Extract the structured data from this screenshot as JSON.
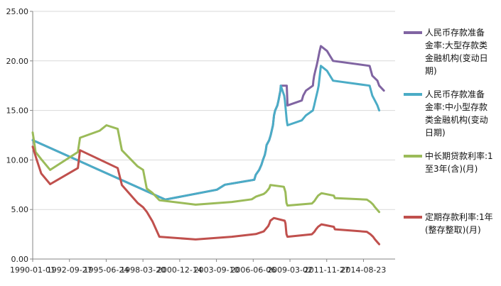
{
  "chart_data": {
    "type": "line",
    "title": "",
    "xlabel": "",
    "ylabel": "",
    "ylim": [
      0,
      25
    ],
    "y_ticks": [
      "0.00",
      "5.00",
      "10.00",
      "15.00",
      "20.00",
      "25.00"
    ],
    "x_range": [
      "1990-01-01",
      "2016-12-31"
    ],
    "x_ticks": [
      "1990-01-01",
      "1992-09-27",
      "1995-06-24",
      "1998-03-20",
      "2000-12-14",
      "2003-09-10",
      "2006-06-06",
      "2009-03-02",
      "2011-11-27",
      "2014-08-23"
    ],
    "grid": "horizontal",
    "legend_position": "right",
    "series": [
      {
        "name": "人民币存款准备金率:大型存款类金融机构(变动日期)",
        "legend_lines": [
          "人民币存款准备",
          "金率:大型存款类",
          "金融机构(变动日",
          "期)"
        ],
        "color": "#8064a2",
        "points": [
          [
            "1990-01-01",
            12.0
          ],
          [
            "1999-11-18",
            6.0
          ],
          [
            "2003-09-21",
            7.0
          ],
          [
            "2004-04-25",
            7.5
          ],
          [
            "2006-07-05",
            8.0
          ],
          [
            "2006-08-15",
            8.5
          ],
          [
            "2006-11-15",
            9.0
          ],
          [
            "2007-01-15",
            9.5
          ],
          [
            "2007-02-25",
            10.0
          ],
          [
            "2007-04-16",
            10.5
          ],
          [
            "2007-05-15",
            11.0
          ],
          [
            "2007-06-05",
            11.5
          ],
          [
            "2007-08-15",
            12.0
          ],
          [
            "2007-09-25",
            12.5
          ],
          [
            "2007-10-25",
            13.0
          ],
          [
            "2007-11-26",
            13.5
          ],
          [
            "2007-12-25",
            14.5
          ],
          [
            "2008-01-25",
            15.0
          ],
          [
            "2008-03-25",
            15.5
          ],
          [
            "2008-04-25",
            16.0
          ],
          [
            "2008-05-20",
            16.5
          ],
          [
            "2008-06-15",
            17.0
          ],
          [
            "2008-06-25",
            17.5
          ],
          [
            "2008-12-05",
            17.5
          ],
          [
            "2008-12-25",
            15.5
          ],
          [
            "2010-01-18",
            16.0
          ],
          [
            "2010-02-25",
            16.5
          ],
          [
            "2010-05-10",
            17.0
          ],
          [
            "2010-11-16",
            17.5
          ],
          [
            "2010-11-29",
            18.0
          ],
          [
            "2010-12-20",
            18.5
          ],
          [
            "2011-01-20",
            19.0
          ],
          [
            "2011-02-24",
            19.5
          ],
          [
            "2011-03-25",
            20.0
          ],
          [
            "2011-04-21",
            20.5
          ],
          [
            "2011-05-18",
            21.0
          ],
          [
            "2011-06-20",
            21.5
          ],
          [
            "2011-12-05",
            21.0
          ],
          [
            "2012-02-24",
            20.5
          ],
          [
            "2012-05-18",
            20.0
          ],
          [
            "2015-02-05",
            19.5
          ],
          [
            "2015-04-20",
            18.5
          ],
          [
            "2015-09-06",
            18.0
          ],
          [
            "2015-10-24",
            17.5
          ],
          [
            "2016-03-01",
            17.0
          ]
        ]
      },
      {
        "name": "人民币存款准备金率:中小型存款类金融机构(变动日期)",
        "legend_lines": [
          "人民币存款准备",
          "金率:中小型存款",
          "类金融机构(变动",
          "日期)"
        ],
        "color": "#4bacc6",
        "points": [
          [
            "1990-01-01",
            12.0
          ],
          [
            "1999-11-18",
            6.0
          ],
          [
            "2003-09-21",
            7.0
          ],
          [
            "2004-04-25",
            7.5
          ],
          [
            "2006-07-05",
            8.0
          ],
          [
            "2006-08-15",
            8.5
          ],
          [
            "2006-11-15",
            9.0
          ],
          [
            "2007-01-15",
            9.5
          ],
          [
            "2007-02-25",
            10.0
          ],
          [
            "2007-04-16",
            10.5
          ],
          [
            "2007-05-15",
            11.0
          ],
          [
            "2007-06-05",
            11.5
          ],
          [
            "2007-08-15",
            12.0
          ],
          [
            "2007-09-25",
            12.5
          ],
          [
            "2007-10-25",
            13.0
          ],
          [
            "2007-11-26",
            13.5
          ],
          [
            "2007-12-25",
            14.5
          ],
          [
            "2008-01-25",
            15.0
          ],
          [
            "2008-03-25",
            15.5
          ],
          [
            "2008-04-25",
            16.0
          ],
          [
            "2008-05-20",
            16.5
          ],
          [
            "2008-06-15",
            17.0
          ],
          [
            "2008-06-25",
            17.5
          ],
          [
            "2008-09-25",
            16.5
          ],
          [
            "2008-10-15",
            16.0
          ],
          [
            "2008-12-05",
            14.0
          ],
          [
            "2008-12-25",
            13.5
          ],
          [
            "2010-01-18",
            14.0
          ],
          [
            "2010-05-10",
            14.5
          ],
          [
            "2010-11-16",
            15.0
          ],
          [
            "2010-12-20",
            15.5
          ],
          [
            "2011-01-20",
            16.0
          ],
          [
            "2011-03-25",
            17.0
          ],
          [
            "2011-04-21",
            17.5
          ],
          [
            "2011-06-20",
            19.5
          ],
          [
            "2011-12-05",
            19.0
          ],
          [
            "2012-02-24",
            18.5
          ],
          [
            "2012-05-18",
            18.0
          ],
          [
            "2015-02-05",
            17.5
          ],
          [
            "2015-04-20",
            16.5
          ],
          [
            "2015-06-28",
            16.0
          ],
          [
            "2015-09-06",
            15.5
          ],
          [
            "2015-10-24",
            15.0
          ]
        ]
      },
      {
        "name": "中长期贷款利率:1至3年(含)(月)",
        "legend_lines": [
          "中长期贷款利率:1",
          "至3年(含)(月)"
        ],
        "color": "#9bbb59",
        "points": [
          [
            "1990-01-01",
            12.78
          ],
          [
            "1990-03-21",
            10.8
          ],
          [
            "1990-08-21",
            10.08
          ],
          [
            "1991-04-21",
            9.0
          ],
          [
            "1993-05-15",
            10.8
          ],
          [
            "1993-07-11",
            12.24
          ],
          [
            "1995-01-01",
            12.96
          ],
          [
            "1995-07-01",
            13.5
          ],
          [
            "1996-05-01",
            13.14
          ],
          [
            "1996-08-23",
            10.98
          ],
          [
            "1997-10-23",
            9.36
          ],
          [
            "1998-03-25",
            9.0
          ],
          [
            "1998-07-01",
            7.11
          ],
          [
            "1998-12-07",
            6.66
          ],
          [
            "1999-06-10",
            5.94
          ],
          [
            "2002-02-21",
            5.49
          ],
          [
            "2004-10-29",
            5.76
          ],
          [
            "2006-04-28",
            6.03
          ],
          [
            "2006-08-19",
            6.3
          ],
          [
            "2007-03-18",
            6.57
          ],
          [
            "2007-05-19",
            6.75
          ],
          [
            "2007-07-21",
            7.02
          ],
          [
            "2007-08-22",
            7.2
          ],
          [
            "2007-09-15",
            7.47
          ],
          [
            "2008-09-16",
            7.29
          ],
          [
            "2008-10-09",
            7.02
          ],
          [
            "2008-10-30",
            6.75
          ],
          [
            "2008-11-27",
            5.67
          ],
          [
            "2008-12-23",
            5.4
          ],
          [
            "2010-10-20",
            5.6
          ],
          [
            "2010-12-26",
            5.85
          ],
          [
            "2011-02-09",
            6.1
          ],
          [
            "2011-04-06",
            6.4
          ],
          [
            "2011-07-07",
            6.65
          ],
          [
            "2012-06-08",
            6.4
          ],
          [
            "2012-07-06",
            6.15
          ],
          [
            "2014-11-22",
            6.0
          ],
          [
            "2015-03-01",
            5.75
          ],
          [
            "2015-05-11",
            5.5
          ],
          [
            "2015-06-28",
            5.25
          ],
          [
            "2015-08-26",
            5.0
          ],
          [
            "2015-10-24",
            4.75
          ]
        ]
      },
      {
        "name": "定期存款利率:1年(整存整取)(月)",
        "legend_lines": [
          "定期存款利率:1年",
          "(整存整取)(月)"
        ],
        "color": "#c0504d",
        "points": [
          [
            "1990-01-01",
            11.34
          ],
          [
            "1990-04-15",
            10.08
          ],
          [
            "1990-08-21",
            8.64
          ],
          [
            "1991-04-21",
            7.56
          ],
          [
            "1993-05-15",
            9.18
          ],
          [
            "1993-07-11",
            10.98
          ],
          [
            "1996-05-01",
            9.18
          ],
          [
            "1996-08-23",
            7.47
          ],
          [
            "1997-10-23",
            5.67
          ],
          [
            "1998-03-25",
            5.22
          ],
          [
            "1998-07-01",
            4.77
          ],
          [
            "1998-12-07",
            3.78
          ],
          [
            "1999-06-10",
            2.25
          ],
          [
            "2002-02-21",
            1.98
          ],
          [
            "2004-10-29",
            2.25
          ],
          [
            "2006-08-19",
            2.52
          ],
          [
            "2007-03-18",
            2.79
          ],
          [
            "2007-05-19",
            3.06
          ],
          [
            "2007-07-21",
            3.33
          ],
          [
            "2007-08-22",
            3.6
          ],
          [
            "2007-09-15",
            3.87
          ],
          [
            "2007-12-21",
            4.14
          ],
          [
            "2008-10-09",
            3.87
          ],
          [
            "2008-10-30",
            3.6
          ],
          [
            "2008-11-27",
            2.52
          ],
          [
            "2008-12-23",
            2.25
          ],
          [
            "2010-10-20",
            2.5
          ],
          [
            "2010-12-26",
            2.75
          ],
          [
            "2011-02-09",
            3.0
          ],
          [
            "2011-04-06",
            3.25
          ],
          [
            "2011-07-07",
            3.5
          ],
          [
            "2012-06-08",
            3.25
          ],
          [
            "2012-07-06",
            3.0
          ],
          [
            "2014-11-22",
            2.75
          ],
          [
            "2015-03-01",
            2.5
          ],
          [
            "2015-05-11",
            2.25
          ],
          [
            "2015-06-28",
            2.0
          ],
          [
            "2015-08-26",
            1.75
          ],
          [
            "2015-10-24",
            1.5
          ]
        ]
      }
    ]
  }
}
